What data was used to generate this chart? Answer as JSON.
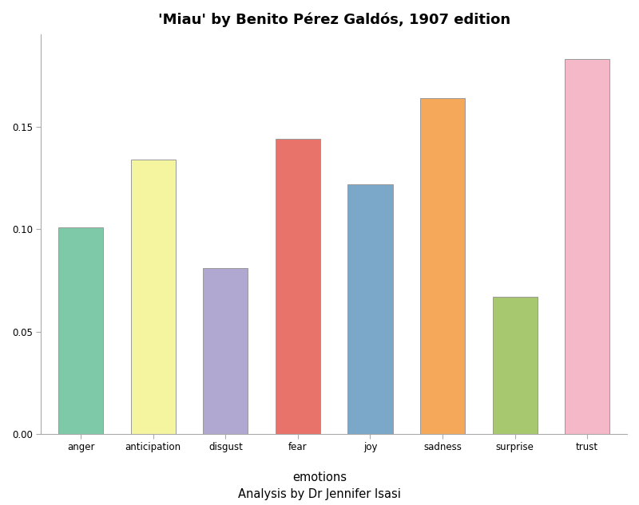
{
  "categories": [
    "anger",
    "anticipation",
    "disgust",
    "fear",
    "joy",
    "sadness",
    "surprise",
    "trust"
  ],
  "values": [
    0.101,
    0.134,
    0.081,
    0.144,
    0.122,
    0.164,
    0.067,
    0.183
  ],
  "bar_colors": [
    "#7ECAA8",
    "#F5F5A0",
    "#B0A8D0",
    "#E8736A",
    "#7BA7C8",
    "#F5A85A",
    "#A8C870",
    "#F5B8C8"
  ],
  "title": "'Miau' by Benito Pérez Galdós, 1907 edition",
  "xlabel": "emotions",
  "xlabel2": "Analysis by Dr Jennifer Isasi",
  "ylim": [
    0,
    0.195
  ],
  "yticks": [
    0.0,
    0.05,
    0.1,
    0.15
  ],
  "background_color": "#ffffff",
  "title_fontsize": 13,
  "tick_fontsize": 8.5,
  "xlabel_fontsize": 10.5,
  "bar_edge_color": "#999999",
  "bar_edge_width": 0.7,
  "bar_width": 0.62
}
